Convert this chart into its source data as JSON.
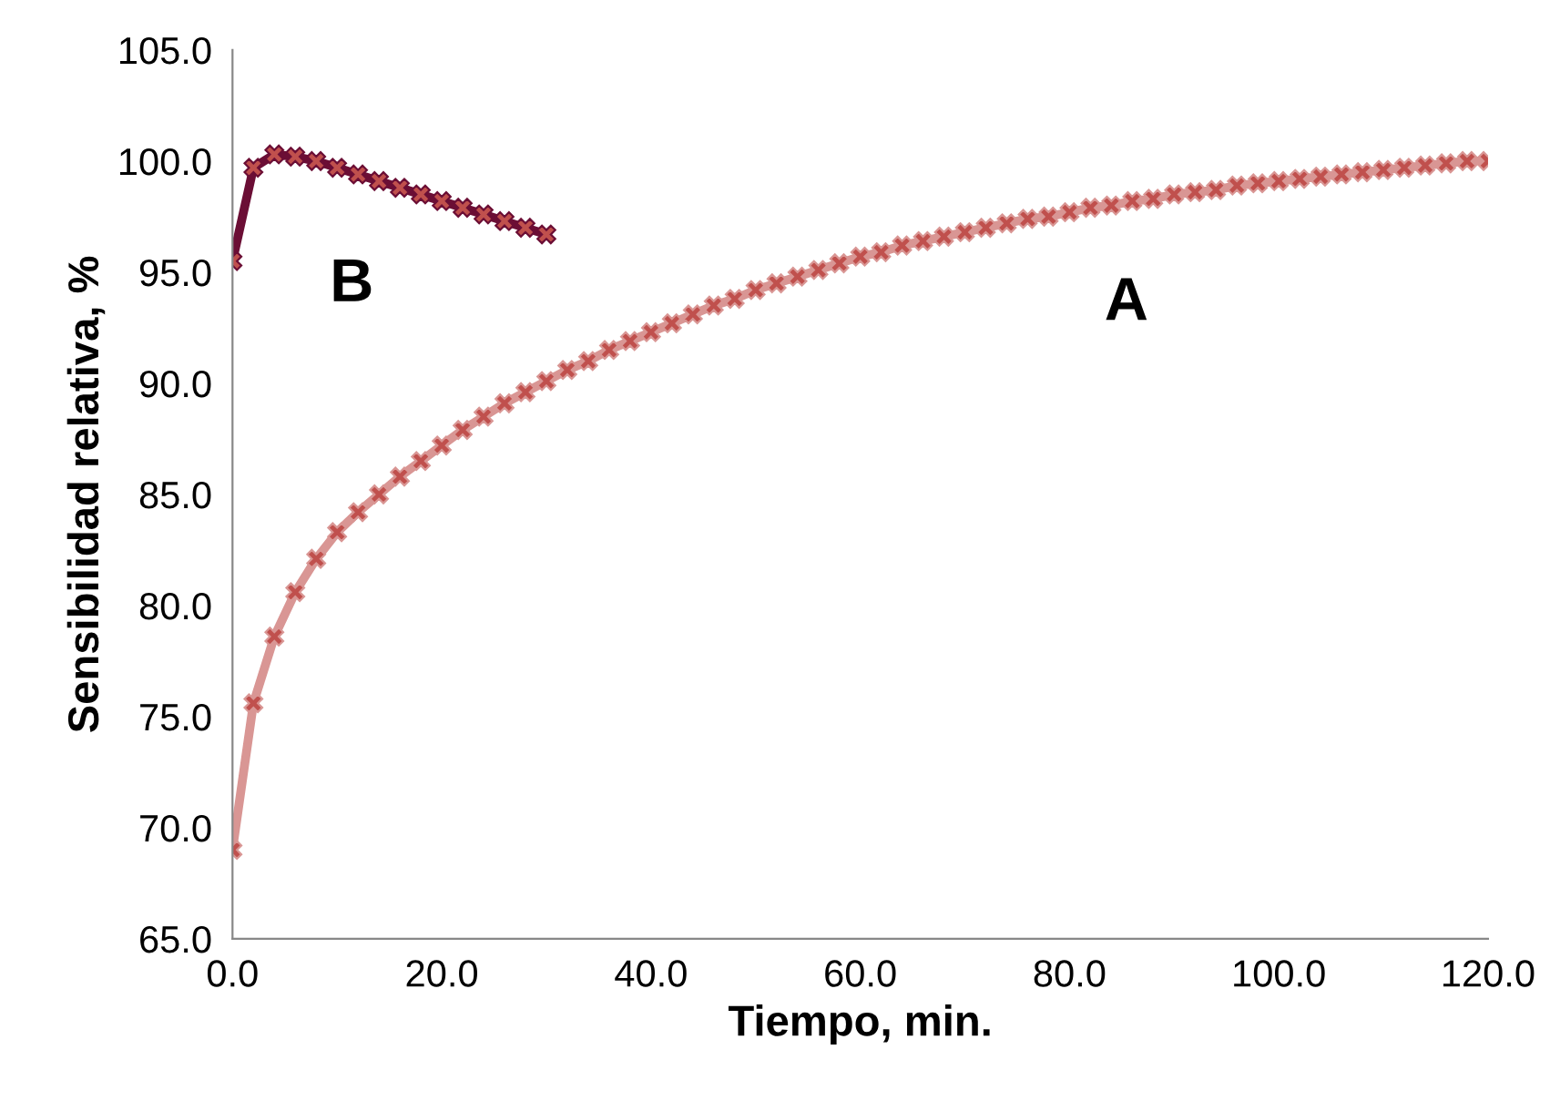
{
  "chart_data": {
    "type": "line",
    "xlabel": "Tiempo, min.",
    "ylabel": "Sensibilidad relativa, %",
    "xlim": [
      0,
      120
    ],
    "xticks": [
      {
        "value": 0,
        "label": "0.0"
      },
      {
        "value": 20,
        "label": "20.0"
      },
      {
        "value": 40,
        "label": "40.0"
      },
      {
        "value": 60,
        "label": "60.0"
      },
      {
        "value": 80,
        "label": "80.0"
      },
      {
        "value": 100,
        "label": "100.0"
      },
      {
        "value": 120,
        "label": "120.0"
      }
    ],
    "ylim": [
      65,
      105
    ],
    "yticks": [
      {
        "value": 65,
        "label": "65.0"
      },
      {
        "value": 70,
        "label": "70.0"
      },
      {
        "value": 75,
        "label": "75.0"
      },
      {
        "value": 80,
        "label": "80.0"
      },
      {
        "value": 85,
        "label": "85.0"
      },
      {
        "value": 90,
        "label": "90.0"
      },
      {
        "value": 95,
        "label": "95.0"
      },
      {
        "value": 100,
        "label": "100.0"
      },
      {
        "value": 105,
        "label": "105.0"
      }
    ],
    "grid": false,
    "marker": "cross",
    "line_style": "solid",
    "annotations": [
      "A",
      "B"
    ],
    "series": [
      {
        "color": "#d99694",
        "x": [
          0,
          2,
          4,
          6,
          8,
          10,
          12,
          14,
          16,
          18,
          20,
          22,
          24,
          26,
          28,
          30,
          32,
          34,
          36,
          38,
          40,
          42,
          44,
          46,
          48,
          50,
          52,
          54,
          56,
          58,
          60,
          62,
          64,
          66,
          68,
          70,
          72,
          74,
          76,
          78,
          80,
          82,
          84,
          86,
          88,
          90,
          92,
          94,
          96,
          98,
          100,
          102,
          104,
          106,
          108,
          110,
          112,
          114,
          116,
          118,
          120
        ],
        "values": [
          69.0,
          75.6,
          78.6,
          80.6,
          82.1,
          83.3,
          84.2,
          85.0,
          85.8,
          86.5,
          87.2,
          87.9,
          88.5,
          89.1,
          89.6,
          90.1,
          90.6,
          91.0,
          91.5,
          91.9,
          92.3,
          92.7,
          93.1,
          93.5,
          93.8,
          94.2,
          94.5,
          94.8,
          95.1,
          95.4,
          95.7,
          95.9,
          96.2,
          96.4,
          96.6,
          96.8,
          97.0,
          97.2,
          97.4,
          97.5,
          97.7,
          97.9,
          98.0,
          98.2,
          98.3,
          98.5,
          98.6,
          98.7,
          98.9,
          99.0,
          99.1,
          99.2,
          99.3,
          99.4,
          99.5,
          99.6,
          99.7,
          99.8,
          99.9,
          100.0,
          100.0
        ]
      },
      {
        "color": "#6b0e35",
        "x": [
          0,
          2,
          4,
          6,
          8,
          10,
          12,
          14,
          16,
          18,
          20,
          22,
          24,
          26,
          28,
          30
        ],
        "values": [
          95.5,
          99.7,
          100.3,
          100.2,
          100.0,
          99.7,
          99.4,
          99.1,
          98.8,
          98.5,
          98.2,
          97.9,
          97.6,
          97.3,
          97.0,
          96.7
        ]
      }
    ]
  }
}
